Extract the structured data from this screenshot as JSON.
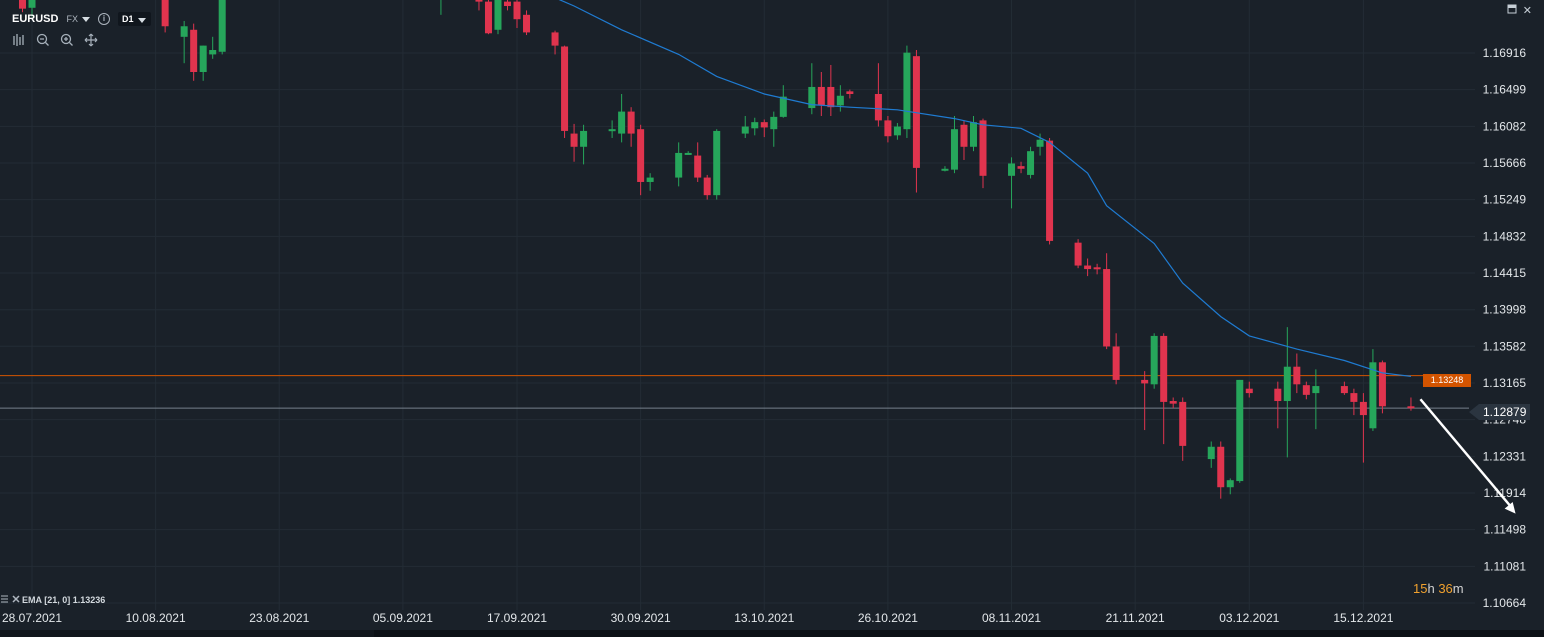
{
  "header": {
    "symbol": "EURUSD",
    "market": "FX",
    "timeframe": "D1"
  },
  "window_controls": {
    "restore_icon": "restore-icon",
    "close_label": "✕"
  },
  "tool_icons": [
    "indicators-icon",
    "zoom-out-icon",
    "zoom-in-icon",
    "move-icon"
  ],
  "ema_legend": "EMA [21, 0] 1.13236",
  "countdown": {
    "hours": "15",
    "h": "h",
    "minutes": "36",
    "m": "m"
  },
  "price_tag": "1.13248",
  "last_price": "1.12879",
  "colors": {
    "background": "#1a2129",
    "grid": "#232c35",
    "up": "#26a65b",
    "down": "#e0344e",
    "ema": "#1f7bd1",
    "price_line": "#d35400",
    "last_line": "#76818b"
  },
  "chart_data": {
    "type": "candlestick",
    "y_axis_ticks": [
      "1.16916",
      "1.16499",
      "1.16082",
      "1.15666",
      "1.15249",
      "1.14832",
      "1.14415",
      "1.13998",
      "1.13582",
      "1.13165",
      "1.12748",
      "1.12331",
      "1.11914",
      "1.11498",
      "1.11081",
      "1.10664"
    ],
    "x_axis_labels": [
      "28.07.2021",
      "10.08.2021",
      "23.08.2021",
      "05.09.2021",
      "17.09.2021",
      "30.09.2021",
      "13.10.2021",
      "26.10.2021",
      "08.11.2021",
      "21.11.2021",
      "03.12.2021",
      "15.12.2021"
    ],
    "horizontal_levels": [
      {
        "value": 1.13248,
        "role": "alert"
      },
      {
        "value": 1.12879,
        "role": "last"
      }
    ],
    "candles": [
      {
        "o": 1.1755,
        "h": 1.1773,
        "l": 1.1738,
        "c": 1.1742
      },
      {
        "o": 1.1743,
        "h": 1.1758,
        "l": 1.1733,
        "c": 1.1755
      },
      {
        "o": 1.1752,
        "h": 1.177,
        "l": 1.1715,
        "c": 1.1722
      },
      {
        "o": 1.171,
        "h": 1.1728,
        "l": 1.168,
        "c": 1.1722
      },
      {
        "o": 1.1718,
        "h": 1.1725,
        "l": 1.166,
        "c": 1.167
      },
      {
        "o": 1.167,
        "h": 1.17,
        "l": 1.166,
        "c": 1.17
      },
      {
        "o": 1.169,
        "h": 1.171,
        "l": 1.1685,
        "c": 1.1695
      },
      {
        "o": 1.1693,
        "h": 1.176,
        "l": 1.169,
        "c": 1.1757
      },
      {
        "o": 1.177,
        "h": 1.179,
        "l": 1.176,
        "c": 1.178
      },
      {
        "o": 1.1775,
        "h": 1.179,
        "l": 1.176,
        "c": 1.1768
      },
      {
        "o": 1.177,
        "h": 1.1785,
        "l": 1.1735,
        "c": 1.1772
      },
      {
        "o": 1.1768,
        "h": 1.1773,
        "l": 1.1755,
        "c": 1.177
      },
      {
        "o": 1.1768,
        "h": 1.1782,
        "l": 1.174,
        "c": 1.175
      },
      {
        "o": 1.175,
        "h": 1.176,
        "l": 1.1713,
        "c": 1.1714
      },
      {
        "o": 1.1718,
        "h": 1.176,
        "l": 1.1713,
        "c": 1.1756
      },
      {
        "o": 1.175,
        "h": 1.176,
        "l": 1.174,
        "c": 1.1745
      },
      {
        "o": 1.175,
        "h": 1.1755,
        "l": 1.172,
        "c": 1.173
      },
      {
        "o": 1.1735,
        "h": 1.174,
        "l": 1.1712,
        "c": 1.1715
      },
      {
        "o": 1.1715,
        "h": 1.1717,
        "l": 1.169,
        "c": 1.17
      },
      {
        "o": 1.1699,
        "h": 1.17,
        "l": 1.1595,
        "c": 1.1603
      },
      {
        "o": 1.16,
        "h": 1.1611,
        "l": 1.1568,
        "c": 1.1585
      },
      {
        "o": 1.1585,
        "h": 1.161,
        "l": 1.1565,
        "c": 1.1603
      },
      {
        "o": 1.1603,
        "h": 1.1615,
        "l": 1.1595,
        "c": 1.1605
      },
      {
        "o": 1.16,
        "h": 1.1645,
        "l": 1.159,
        "c": 1.1625
      },
      {
        "o": 1.1625,
        "h": 1.163,
        "l": 1.1585,
        "c": 1.16
      },
      {
        "o": 1.1605,
        "h": 1.161,
        "l": 1.153,
        "c": 1.1545
      },
      {
        "o": 1.1545,
        "h": 1.1555,
        "l": 1.1535,
        "c": 1.155
      },
      {
        "o": 1.155,
        "h": 1.159,
        "l": 1.154,
        "c": 1.1578
      },
      {
        "o": 1.1577,
        "h": 1.158,
        "l": 1.1576,
        "c": 1.1578
      },
      {
        "o": 1.1575,
        "h": 1.159,
        "l": 1.1545,
        "c": 1.155
      },
      {
        "o": 1.155,
        "h": 1.1553,
        "l": 1.1525,
        "c": 1.153
      },
      {
        "o": 1.153,
        "h": 1.1605,
        "l": 1.1525,
        "c": 1.1603
      },
      {
        "o": 1.16,
        "h": 1.162,
        "l": 1.1595,
        "c": 1.1608
      },
      {
        "o": 1.1606,
        "h": 1.1618,
        "l": 1.1598,
        "c": 1.1613
      },
      {
        "o": 1.1613,
        "h": 1.1616,
        "l": 1.1596,
        "c": 1.1607
      },
      {
        "o": 1.1605,
        "h": 1.1625,
        "l": 1.1585,
        "c": 1.1619
      },
      {
        "o": 1.1619,
        "h": 1.1655,
        "l": 1.1618,
        "c": 1.1642
      },
      {
        "o": 1.1629,
        "h": 1.168,
        "l": 1.1622,
        "c": 1.1653
      },
      {
        "o": 1.1653,
        "h": 1.167,
        "l": 1.162,
        "c": 1.1632
      },
      {
        "o": 1.1653,
        "h": 1.1678,
        "l": 1.162,
        "c": 1.163
      },
      {
        "o": 1.1632,
        "h": 1.1655,
        "l": 1.1625,
        "c": 1.1643
      },
      {
        "o": 1.1648,
        "h": 1.165,
        "l": 1.164,
        "c": 1.1645
      },
      {
        "o": 1.1645,
        "h": 1.168,
        "l": 1.1608,
        "c": 1.1615
      },
      {
        "o": 1.1615,
        "h": 1.162,
        "l": 1.159,
        "c": 1.1597
      },
      {
        "o": 1.1598,
        "h": 1.1612,
        "l": 1.1593,
        "c": 1.1608
      },
      {
        "o": 1.1605,
        "h": 1.17,
        "l": 1.1595,
        "c": 1.1692
      },
      {
        "o": 1.1688,
        "h": 1.1695,
        "l": 1.1533,
        "c": 1.1561
      },
      {
        "o": 1.156,
        "h": 1.1563,
        "l": 1.1557,
        "c": 1.156
      },
      {
        "o": 1.1559,
        "h": 1.162,
        "l": 1.1555,
        "c": 1.1605
      },
      {
        "o": 1.161,
        "h": 1.1615,
        "l": 1.157,
        "c": 1.1585
      },
      {
        "o": 1.1585,
        "h": 1.162,
        "l": 1.158,
        "c": 1.1613
      },
      {
        "o": 1.1615,
        "h": 1.1617,
        "l": 1.1538,
        "c": 1.1552
      },
      {
        "o": 1.1552,
        "h": 1.1573,
        "l": 1.1515,
        "c": 1.1566
      },
      {
        "o": 1.1563,
        "h": 1.1568,
        "l": 1.1555,
        "c": 1.156
      },
      {
        "o": 1.1553,
        "h": 1.1585,
        "l": 1.1549,
        "c": 1.158
      },
      {
        "o": 1.1585,
        "h": 1.16,
        "l": 1.1575,
        "c": 1.1593
      },
      {
        "o": 1.1592,
        "h": 1.1595,
        "l": 1.1474,
        "c": 1.1478
      },
      {
        "o": 1.1476,
        "h": 1.148,
        "l": 1.1447,
        "c": 1.145
      },
      {
        "o": 1.145,
        "h": 1.1458,
        "l": 1.1438,
        "c": 1.1446
      },
      {
        "o": 1.1448,
        "h": 1.1452,
        "l": 1.144,
        "c": 1.1446
      },
      {
        "o": 1.1446,
        "h": 1.1464,
        "l": 1.1355,
        "c": 1.1358
      },
      {
        "o": 1.1358,
        "h": 1.1373,
        "l": 1.1315,
        "c": 1.132
      },
      {
        "o": 1.132,
        "h": 1.133,
        "l": 1.1263,
        "c": 1.1316
      },
      {
        "o": 1.1315,
        "h": 1.1373,
        "l": 1.131,
        "c": 1.137
      },
      {
        "o": 1.137,
        "h": 1.1373,
        "l": 1.1247,
        "c": 1.1295
      },
      {
        "o": 1.1296,
        "h": 1.13,
        "l": 1.1288,
        "c": 1.1293
      },
      {
        "o": 1.1295,
        "h": 1.13,
        "l": 1.1228,
        "c": 1.1245
      },
      {
        "o": 1.123,
        "h": 1.125,
        "l": 1.122,
        "c": 1.1244
      },
      {
        "o": 1.1244,
        "h": 1.125,
        "l": 1.1185,
        "c": 1.1198
      },
      {
        "o": 1.1198,
        "h": 1.1208,
        "l": 1.119,
        "c": 1.1206
      },
      {
        "o": 1.1205,
        "h": 1.132,
        "l": 1.1203,
        "c": 1.132
      },
      {
        "o": 1.131,
        "h": 1.1318,
        "l": 1.13,
        "c": 1.1305
      },
      {
        "o": 1.131,
        "h": 1.1318,
        "l": 1.1265,
        "c": 1.1296
      },
      {
        "o": 1.1296,
        "h": 1.138,
        "l": 1.1232,
        "c": 1.1335
      },
      {
        "o": 1.1335,
        "h": 1.135,
        "l": 1.1305,
        "c": 1.1315
      },
      {
        "o": 1.1314,
        "h": 1.1318,
        "l": 1.1298,
        "c": 1.1303
      },
      {
        "o": 1.1305,
        "h": 1.1332,
        "l": 1.1264,
        "c": 1.1313
      },
      {
        "o": 1.1313,
        "h": 1.1318,
        "l": 1.1303,
        "c": 1.1305
      },
      {
        "o": 1.1305,
        "h": 1.131,
        "l": 1.128,
        "c": 1.1295
      },
      {
        "o": 1.1295,
        "h": 1.1305,
        "l": 1.1226,
        "c": 1.128
      },
      {
        "o": 1.1265,
        "h": 1.1355,
        "l": 1.1262,
        "c": 1.134
      },
      {
        "o": 1.134,
        "h": 1.1342,
        "l": 1.1282,
        "c": 1.129
      },
      {
        "o": 1.129,
        "h": 1.13,
        "l": 1.1285,
        "c": 1.1288
      }
    ],
    "candle_dates": [
      "2021-07-27",
      "2021-07-28",
      "2021-08-11",
      "2021-08-13",
      "2021-08-14",
      "2021-08-15",
      "2021-08-16",
      "2021-08-17",
      "2021-09-07",
      "2021-09-08",
      "2021-09-09",
      "2021-09-10",
      "2021-09-13",
      "2021-09-14",
      "2021-09-15",
      "2021-09-16",
      "2021-09-17",
      "2021-09-18",
      "2021-09-21",
      "2021-09-22",
      "2021-09-23",
      "2021-09-24",
      "2021-09-27",
      "2021-09-28",
      "2021-09-29",
      "2021-09-30",
      "2021-10-01",
      "2021-10-04",
      "2021-10-05",
      "2021-10-06",
      "2021-10-07",
      "2021-10-08",
      "2021-10-11",
      "2021-10-12",
      "2021-10-13",
      "2021-10-14",
      "2021-10-15",
      "2021-10-18",
      "2021-10-19",
      "2021-10-20",
      "2021-10-21",
      "2021-10-22",
      "2021-10-25",
      "2021-10-26",
      "2021-10-27",
      "2021-10-28",
      "2021-10-29",
      "2021-11-01",
      "2021-11-02",
      "2021-11-03",
      "2021-11-04",
      "2021-11-05",
      "2021-11-08",
      "2021-11-09",
      "2021-11-10",
      "2021-11-11",
      "2021-11-12",
      "2021-11-15",
      "2021-11-16",
      "2021-11-17",
      "2021-11-18",
      "2021-11-19",
      "2021-11-22",
      "2021-11-23",
      "2021-11-24",
      "2021-11-25",
      "2021-11-26",
      "2021-11-29",
      "2021-11-30",
      "2021-12-01",
      "2021-12-02",
      "2021-12-03",
      "2021-12-06",
      "2021-12-07",
      "2021-12-08",
      "2021-12-09",
      "2021-12-10",
      "2021-12-13",
      "2021-12-14",
      "2021-12-15",
      "2021-12-16",
      "2021-12-17",
      "2021-12-20"
    ],
    "ema": {
      "name": "EMA [21, 0]",
      "points": [
        {
          "date": "2021-09-17",
          "v": 1.1773
        },
        {
          "date": "2021-09-23",
          "v": 1.1745
        },
        {
          "date": "2021-09-28",
          "v": 1.1718
        },
        {
          "date": "2021-10-04",
          "v": 1.169
        },
        {
          "date": "2021-10-08",
          "v": 1.1665
        },
        {
          "date": "2021-10-13",
          "v": 1.1645
        },
        {
          "date": "2021-10-18",
          "v": 1.1633
        },
        {
          "date": "2021-10-22",
          "v": 1.163
        },
        {
          "date": "2021-10-27",
          "v": 1.1627
        },
        {
          "date": "2021-11-02",
          "v": 1.1617
        },
        {
          "date": "2021-11-05",
          "v": 1.161
        },
        {
          "date": "2021-11-09",
          "v": 1.1606
        },
        {
          "date": "2021-11-12",
          "v": 1.159
        },
        {
          "date": "2021-11-16",
          "v": 1.1555
        },
        {
          "date": "2021-11-18",
          "v": 1.1518
        },
        {
          "date": "2021-11-23",
          "v": 1.1475
        },
        {
          "date": "2021-11-26",
          "v": 1.143
        },
        {
          "date": "2021-11-30",
          "v": 1.1392
        },
        {
          "date": "2021-12-03",
          "v": 1.137
        },
        {
          "date": "2021-12-08",
          "v": 1.1355
        },
        {
          "date": "2021-12-13",
          "v": 1.1342
        },
        {
          "date": "2021-12-17",
          "v": 1.1328
        },
        {
          "date": "2021-12-20",
          "v": 1.1324
        }
      ]
    },
    "arrow": {
      "from": {
        "date": "2021-12-21",
        "v": 1.1298
      },
      "to": {
        "date": "2021-12-31",
        "v": 1.1168
      }
    }
  }
}
